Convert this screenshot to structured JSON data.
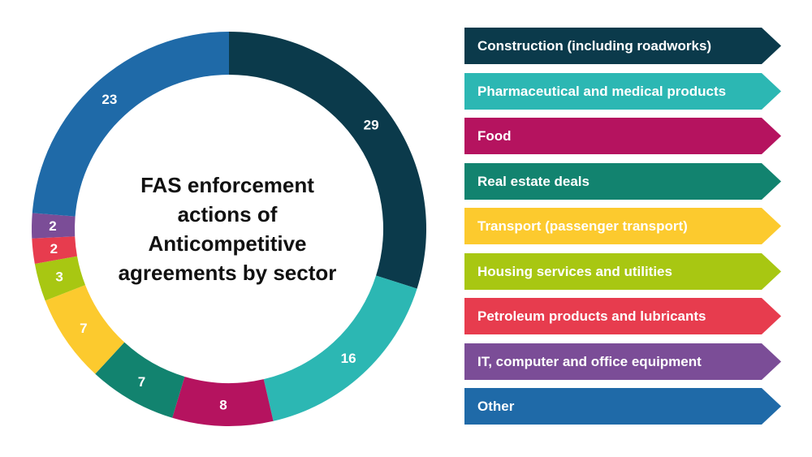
{
  "chart_data": {
    "type": "donut",
    "title": "FAS enforcement\nactions of\nAnticompetitive\nagreements by sector",
    "categories": [
      "Construction (including roadworks)",
      "Pharmaceutical and medical products",
      "Food",
      "Real estate deals",
      "Transport (passenger transport)",
      "Housing services and utilities",
      "Petroleum products and lubricants",
      "IT, computer and office equipment",
      "Other"
    ],
    "values": [
      29,
      16,
      8,
      7,
      7,
      3,
      2,
      2,
      23
    ],
    "colors": [
      "#0b3a4b",
      "#2cb7b3",
      "#b5135f",
      "#12836f",
      "#fcca2e",
      "#a8c712",
      "#e73c4e",
      "#7b4d97",
      "#1f6aa8"
    ],
    "legend_position": "right"
  }
}
